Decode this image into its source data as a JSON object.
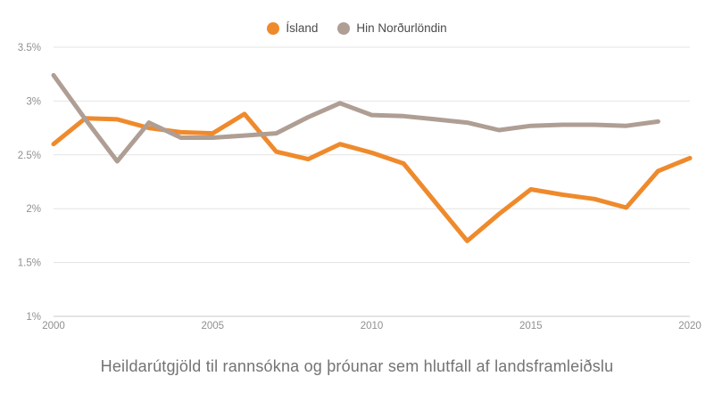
{
  "title": "Heildarútgjöld til rannsókna og þróunar sem hlutfall af landsframleiðslu",
  "legend": {
    "items": [
      {
        "label": "Ísland",
        "color": "#EF8A2C"
      },
      {
        "label": "Hin Norðurlöndin",
        "color": "#AF9E94"
      }
    ]
  },
  "chart_data": {
    "type": "line",
    "x": [
      2000,
      2001,
      2002,
      2003,
      2004,
      2005,
      2006,
      2007,
      2008,
      2009,
      2010,
      2011,
      2012,
      2013,
      2014,
      2015,
      2016,
      2017,
      2018,
      2019,
      2020
    ],
    "series": [
      {
        "name": "Ísland",
        "color": "#EF8A2C",
        "values": [
          2.6,
          2.84,
          2.83,
          2.75,
          2.71,
          2.7,
          2.88,
          2.53,
          2.46,
          2.6,
          2.52,
          2.42,
          2.06,
          1.7,
          1.95,
          2.18,
          2.13,
          2.09,
          2.01,
          2.35,
          2.47
        ]
      },
      {
        "name": "Hin Norðurlöndin",
        "color": "#AF9E94",
        "values": [
          3.24,
          2.83,
          2.44,
          2.8,
          2.66,
          2.66,
          2.68,
          2.7,
          2.85,
          2.98,
          2.87,
          2.86,
          2.83,
          2.8,
          2.73,
          2.77,
          2.78,
          2.78,
          2.77,
          2.81,
          null
        ]
      }
    ],
    "xticks": [
      {
        "label": "2000",
        "value": 2000
      },
      {
        "label": "2005",
        "value": 2005
      },
      {
        "label": "2010",
        "value": 2010
      },
      {
        "label": "2015",
        "value": 2015
      },
      {
        "label": "2020",
        "value": 2020
      }
    ],
    "yticks": [
      {
        "label": "3.5%",
        "value": 3.5
      },
      {
        "label": "3%",
        "value": 3.0
      },
      {
        "label": "2.5%",
        "value": 2.5
      },
      {
        "label": "2%",
        "value": 2.0
      },
      {
        "label": "1.5%",
        "value": 1.5
      },
      {
        "label": "1%",
        "value": 1.0
      }
    ],
    "ylim": [
      1.0,
      3.5
    ],
    "xlim": [
      2000,
      2020
    ],
    "xlabel": "",
    "ylabel": "",
    "grid": true,
    "legend_position": "top",
    "styles": {
      "grid_color": "#e3e3e3",
      "baseline_color": "#c9c9c9",
      "tick_label_color": "#909090",
      "title_color": "#737373",
      "line_width": 5
    }
  }
}
